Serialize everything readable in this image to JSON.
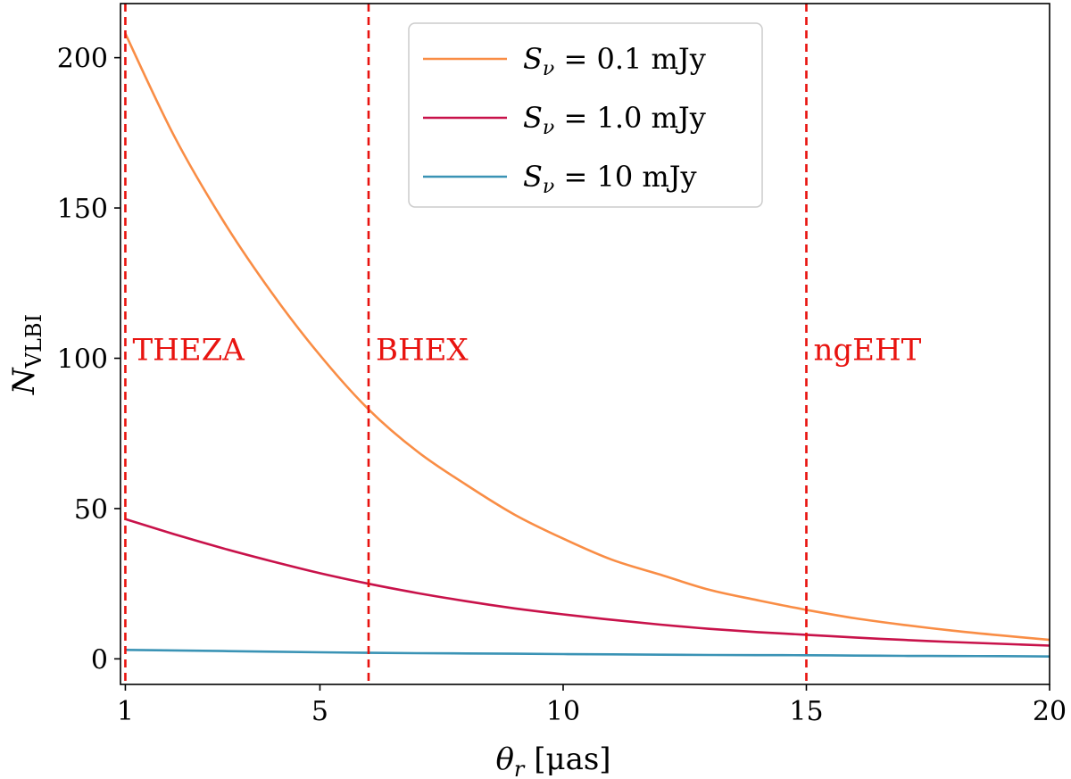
{
  "chart_data": {
    "type": "line",
    "title": "",
    "xlabel": "θ_r [μas]",
    "xlabel_parts": {
      "sym": "θ",
      "sub": "r",
      "unit": " [μas]"
    },
    "ylabel": "N_VLBI",
    "ylabel_parts": {
      "sym": "N",
      "sub": "VLBI"
    },
    "xlim": [
      0.9,
      20
    ],
    "ylim": [
      -8.5,
      218
    ],
    "x_ticks": [
      1,
      5,
      10,
      15,
      20
    ],
    "y_ticks": [
      0,
      50,
      100,
      150,
      200
    ],
    "grid": false,
    "legend_position": "top-center",
    "series": [
      {
        "name": "S_ν = 0.1 mJy",
        "label_value": "= 0.1 mJy",
        "color": "#f98d45",
        "x": [
          1,
          2,
          3,
          4,
          5,
          6,
          7,
          8,
          9,
          10,
          11,
          12,
          13,
          14,
          15,
          16,
          17,
          18,
          19,
          20
        ],
        "y": [
          208,
          174,
          146,
          122,
          101,
          83,
          69,
          58,
          48,
          40,
          33,
          28,
          23,
          19.5,
          16.3,
          13.5,
          11.3,
          9.4,
          7.8,
          6.3
        ]
      },
      {
        "name": "S_ν = 1.0 mJy",
        "label_value": "= 1.0 mJy",
        "color": "#c8124a",
        "x": [
          1,
          2,
          3,
          4,
          5,
          6,
          7,
          8,
          9,
          10,
          11,
          12,
          13,
          14,
          15,
          16,
          17,
          18,
          19,
          20
        ],
        "y": [
          46.5,
          41.5,
          36.8,
          32.5,
          28.5,
          25,
          21.9,
          19.2,
          16.8,
          14.8,
          13,
          11.4,
          10,
          8.9,
          8,
          7.1,
          6.3,
          5.6,
          5,
          4.4
        ]
      },
      {
        "name": "S_ν = 10 mJy",
        "label_value": "= 10 mJy",
        "color": "#3a93b5",
        "x": [
          1,
          2,
          3,
          4,
          5,
          6,
          7,
          8,
          9,
          10,
          11,
          12,
          13,
          14,
          15,
          16,
          17,
          18,
          19,
          20
        ],
        "y": [
          3,
          2.8,
          2.6,
          2.4,
          2.2,
          2.0,
          1.9,
          1.8,
          1.7,
          1.6,
          1.5,
          1.4,
          1.3,
          1.25,
          1.2,
          1.1,
          1.0,
          0.95,
          0.9,
          0.8
        ]
      }
    ],
    "vlines": [
      {
        "x": 1,
        "label": "THEZA",
        "color": "#e8130f"
      },
      {
        "x": 6,
        "label": "BHEX",
        "color": "#e8130f"
      },
      {
        "x": 15,
        "label": "ngEHT",
        "color": "#e8130f"
      }
    ],
    "annotation_y": 103
  }
}
